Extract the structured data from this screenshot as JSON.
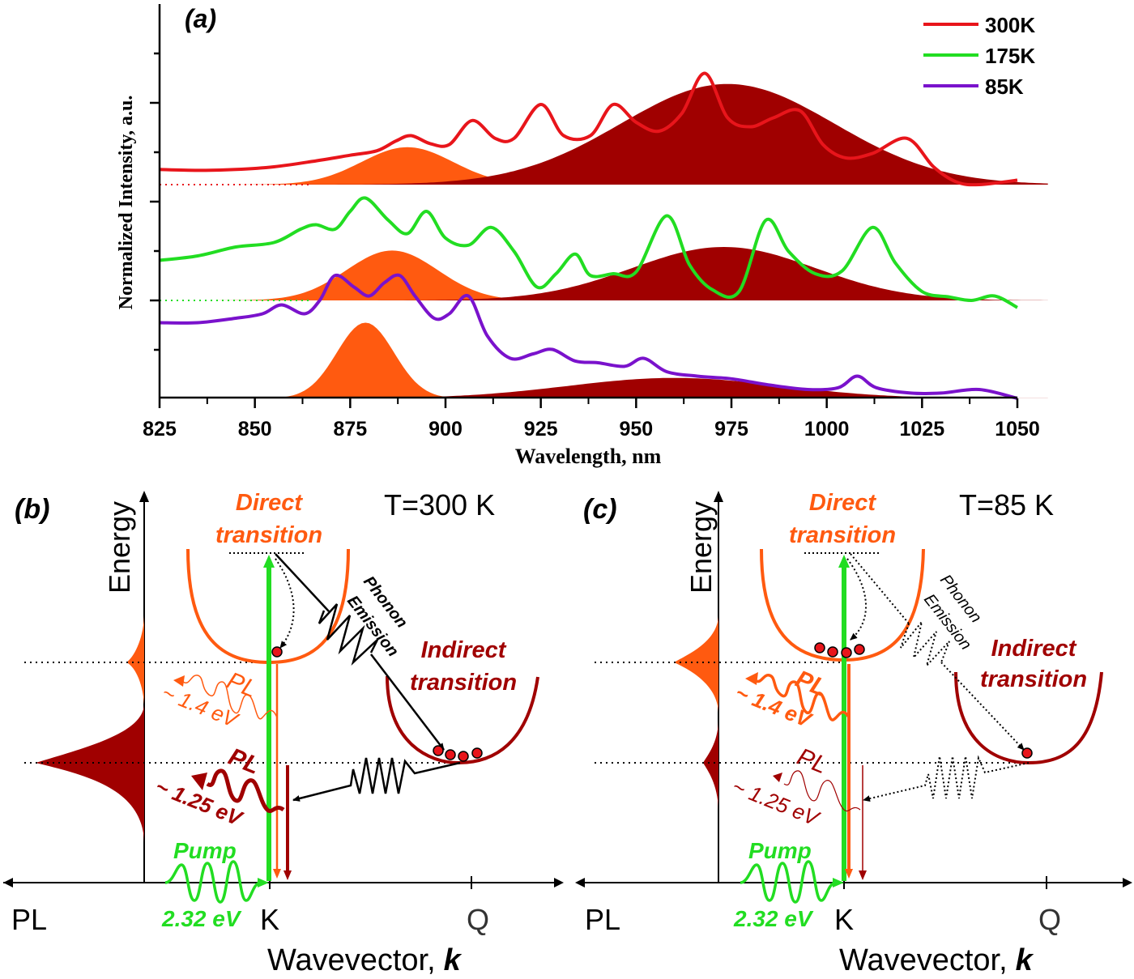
{
  "colors": {
    "red": "#e8151b",
    "green": "#22dd22",
    "purple": "#7a12cc",
    "orange": "#ff5a10",
    "darkred": "#a00000",
    "black": "#000000"
  },
  "chart_data": [
    {
      "type": "line",
      "panel_label": "(a)",
      "xlabel": "Wavelength, nm",
      "ylabel": "Normalized Intensity, a.u.",
      "xlim": [
        825,
        1050
      ],
      "x_ticks": [
        "825",
        "850",
        "875",
        "900",
        "925",
        "950",
        "975",
        "1000",
        "1025",
        "1050"
      ],
      "legend": [
        "300K",
        "175K",
        "85K"
      ],
      "legend_position": "top-right",
      "series": [
        {
          "name": "300K",
          "color": "#e8151b",
          "offset": 2.4,
          "x": [
            825,
            835,
            845,
            855,
            865,
            875,
            882,
            887,
            891,
            896,
            901,
            907,
            913,
            918,
            925,
            931,
            938,
            944,
            950,
            956,
            962,
            968,
            974,
            980,
            986,
            993,
            999,
            1005,
            1012,
            1021,
            1028,
            1034,
            1040,
            1050
          ],
          "y": [
            0.17,
            0.16,
            0.17,
            0.2,
            0.26,
            0.33,
            0.38,
            0.49,
            0.55,
            0.46,
            0.45,
            0.72,
            0.52,
            0.52,
            0.9,
            0.55,
            0.55,
            0.9,
            0.7,
            0.6,
            0.8,
            1.25,
            0.75,
            0.65,
            0.75,
            0.83,
            0.45,
            0.3,
            0.35,
            0.52,
            0.2,
            0.03,
            0.0,
            0.05
          ]
        },
        {
          "name": "175K",
          "color": "#22dd22",
          "offset": 1.1,
          "x": [
            825,
            835,
            845,
            855,
            862,
            866,
            871,
            875,
            879,
            885,
            890,
            895,
            900,
            906,
            912,
            918,
            924,
            929,
            934,
            938,
            944,
            950,
            958,
            964,
            970,
            977,
            984,
            990,
            997,
            1004,
            1012,
            1018,
            1025,
            1032,
            1038,
            1044,
            1050
          ],
          "y": [
            0.45,
            0.5,
            0.6,
            0.65,
            0.8,
            0.85,
            0.8,
            1.0,
            1.15,
            0.9,
            0.75,
            1.0,
            0.7,
            0.62,
            0.82,
            0.55,
            0.15,
            0.3,
            0.52,
            0.28,
            0.3,
            0.32,
            0.95,
            0.4,
            0.12,
            0.1,
            0.9,
            0.55,
            0.3,
            0.33,
            0.82,
            0.42,
            0.1,
            0.04,
            0.0,
            0.05,
            -0.08
          ]
        },
        {
          "name": "85K",
          "color": "#7a12cc",
          "offset": 0,
          "x": [
            825,
            835,
            845,
            852,
            857,
            863,
            867,
            871,
            876,
            880,
            884,
            888,
            892,
            897,
            901,
            906,
            911,
            917,
            923,
            928,
            934,
            940,
            947,
            952,
            958,
            966,
            975,
            985,
            995,
            1003,
            1008,
            1013,
            1022,
            1030,
            1040,
            1050
          ],
          "y": [
            0.85,
            0.85,
            0.9,
            0.95,
            1.05,
            0.95,
            1.1,
            1.38,
            1.25,
            1.15,
            1.3,
            1.38,
            1.15,
            0.9,
            0.95,
            1.15,
            0.7,
            0.45,
            0.5,
            0.55,
            0.42,
            0.4,
            0.36,
            0.45,
            0.3,
            0.25,
            0.22,
            0.15,
            0.1,
            0.12,
            0.25,
            0.12,
            0.06,
            0.06,
            0.1,
            0.0
          ]
        }
      ],
      "fills": [
        {
          "series": "300K",
          "name": "Direct transition band",
          "color": "#ff5a10",
          "center": 890,
          "amplitude": 0.42,
          "width": 12
        },
        {
          "series": "300K",
          "name": "Indirect transition band",
          "color": "#a00000",
          "center": 974,
          "amplitude": 1.13,
          "width": 28
        },
        {
          "series": "175K",
          "name": "Direct transition band",
          "color": "#ff5a10",
          "center": 886,
          "amplitude": 0.56,
          "width": 12
        },
        {
          "series": "175K",
          "name": "Indirect transition band",
          "color": "#a00000",
          "center": 973,
          "amplitude": 0.6,
          "width": 24
        },
        {
          "series": "85K",
          "name": "Direct transition band",
          "color": "#ff5a10",
          "center": 879,
          "amplitude": 0.85,
          "width": 7.5
        },
        {
          "series": "85K",
          "name": "Indirect transition band",
          "color": "#a00000",
          "center": 960,
          "amplitude": 0.23,
          "width": 28
        }
      ]
    }
  ],
  "panel_b": {
    "label": "(b)",
    "temperature": "T=300 K",
    "energy_axis": "Energy",
    "pl_axis": "PL",
    "x_axis_prefix": "Wavevector,",
    "x_axis_symbol": "k",
    "k_label": "K",
    "q_label": "Q",
    "direct_line1": "Direct",
    "direct_line2": "transition",
    "indirect_line1": "Indirect",
    "indirect_line2": "transition",
    "phonon_line1": "Phonon",
    "phonon_line2": "Emission",
    "pl_direct": "PL",
    "pl_direct_energy": "~ 1.4 eV",
    "pl_indirect": "PL",
    "pl_indirect_energy": "~ 1.25 eV",
    "pump": "Pump",
    "pump_energy": "2.32 eV"
  },
  "panel_c": {
    "label": "(c)",
    "temperature": "T=85 K",
    "energy_axis": "Energy",
    "pl_axis": "PL",
    "x_axis_prefix": "Wavevector,",
    "x_axis_symbol": "k",
    "k_label": "K",
    "q_label": "Q",
    "direct_line1": "Direct",
    "direct_line2": "transition",
    "indirect_line1": "Indirect",
    "indirect_line2": "transition",
    "phonon_line1": "Phonon",
    "phonon_line2": "Emission",
    "pl_direct": "PL",
    "pl_direct_energy": "~ 1.4 eV",
    "pl_indirect": "PL",
    "pl_indirect_energy": "~ 1.25 eV",
    "pump": "Pump",
    "pump_energy": "2.32 eV"
  }
}
